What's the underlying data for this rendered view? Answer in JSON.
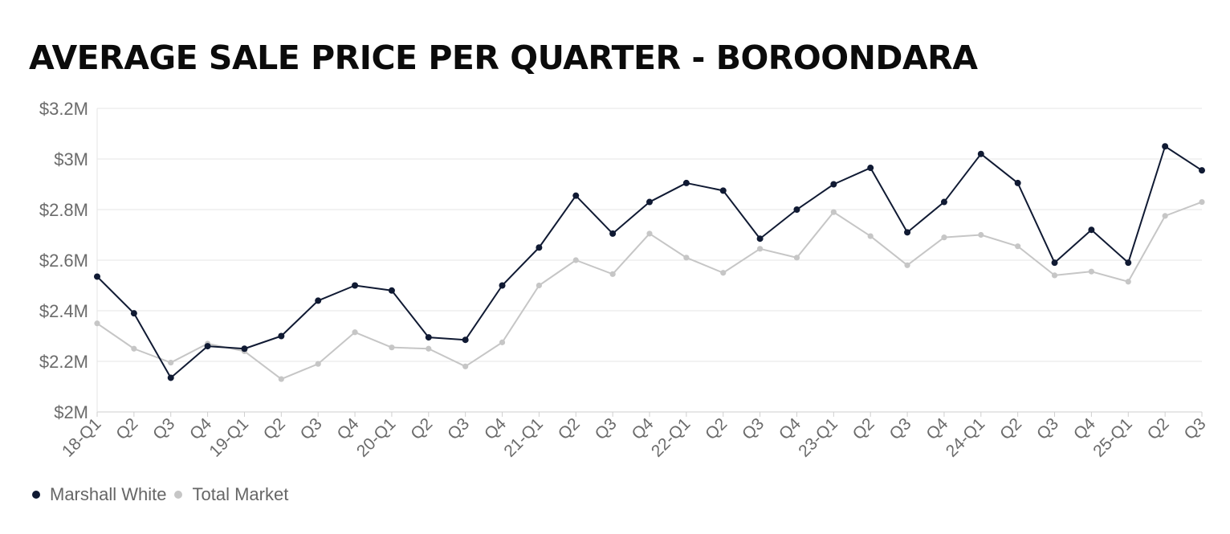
{
  "chart_data": {
    "type": "line",
    "title": "AVERAGE SALE PRICE PER QUARTER - BOROONDARA",
    "xlabel": "",
    "ylabel": "",
    "categories": [
      "18-Q1",
      "Q2",
      "Q3",
      "Q4",
      "19-Q1",
      "Q2",
      "Q3",
      "Q4",
      "20-Q1",
      "Q2",
      "Q3",
      "Q4",
      "21-Q1",
      "Q2",
      "Q3",
      "Q4",
      "22-Q1",
      "Q2",
      "Q3",
      "Q4",
      "23-Q1",
      "Q2",
      "Q3",
      "Q4",
      "24-Q1",
      "Q2",
      "Q3",
      "Q4",
      "25-Q1",
      "Q2",
      "Q3"
    ],
    "ylim": [
      2.0,
      3.2
    ],
    "y_ticks": [
      {
        "value": 2.0,
        "label": "$2M"
      },
      {
        "value": 2.2,
        "label": "$2.2M"
      },
      {
        "value": 2.4,
        "label": "$2.4M"
      },
      {
        "value": 2.6,
        "label": "$2.6M"
      },
      {
        "value": 2.8,
        "label": "$2.8M"
      },
      {
        "value": 3.0,
        "label": "$3M"
      },
      {
        "value": 3.2,
        "label": "$3.2M"
      }
    ],
    "unit": "$M",
    "grid": true,
    "legend_position": "bottom-left",
    "series": [
      {
        "name": "Marshall White",
        "color": "#101a33",
        "values": [
          2.535,
          2.39,
          2.135,
          2.26,
          2.25,
          2.3,
          2.44,
          2.5,
          2.48,
          2.295,
          2.285,
          2.5,
          2.65,
          2.855,
          2.705,
          2.83,
          2.905,
          2.875,
          2.685,
          2.8,
          2.9,
          2.965,
          2.71,
          2.83,
          3.02,
          2.905,
          2.59,
          2.72,
          2.59,
          3.05,
          2.955
        ]
      },
      {
        "name": "Total Market",
        "color": "#c6c6c6",
        "values": [
          2.35,
          2.25,
          2.195,
          2.27,
          2.24,
          2.13,
          2.19,
          2.315,
          2.255,
          2.25,
          2.18,
          2.275,
          2.5,
          2.6,
          2.545,
          2.705,
          2.61,
          2.55,
          2.645,
          2.61,
          2.79,
          2.695,
          2.58,
          2.69,
          2.7,
          2.655,
          2.54,
          2.555,
          2.515,
          2.775,
          2.83
        ]
      }
    ]
  }
}
